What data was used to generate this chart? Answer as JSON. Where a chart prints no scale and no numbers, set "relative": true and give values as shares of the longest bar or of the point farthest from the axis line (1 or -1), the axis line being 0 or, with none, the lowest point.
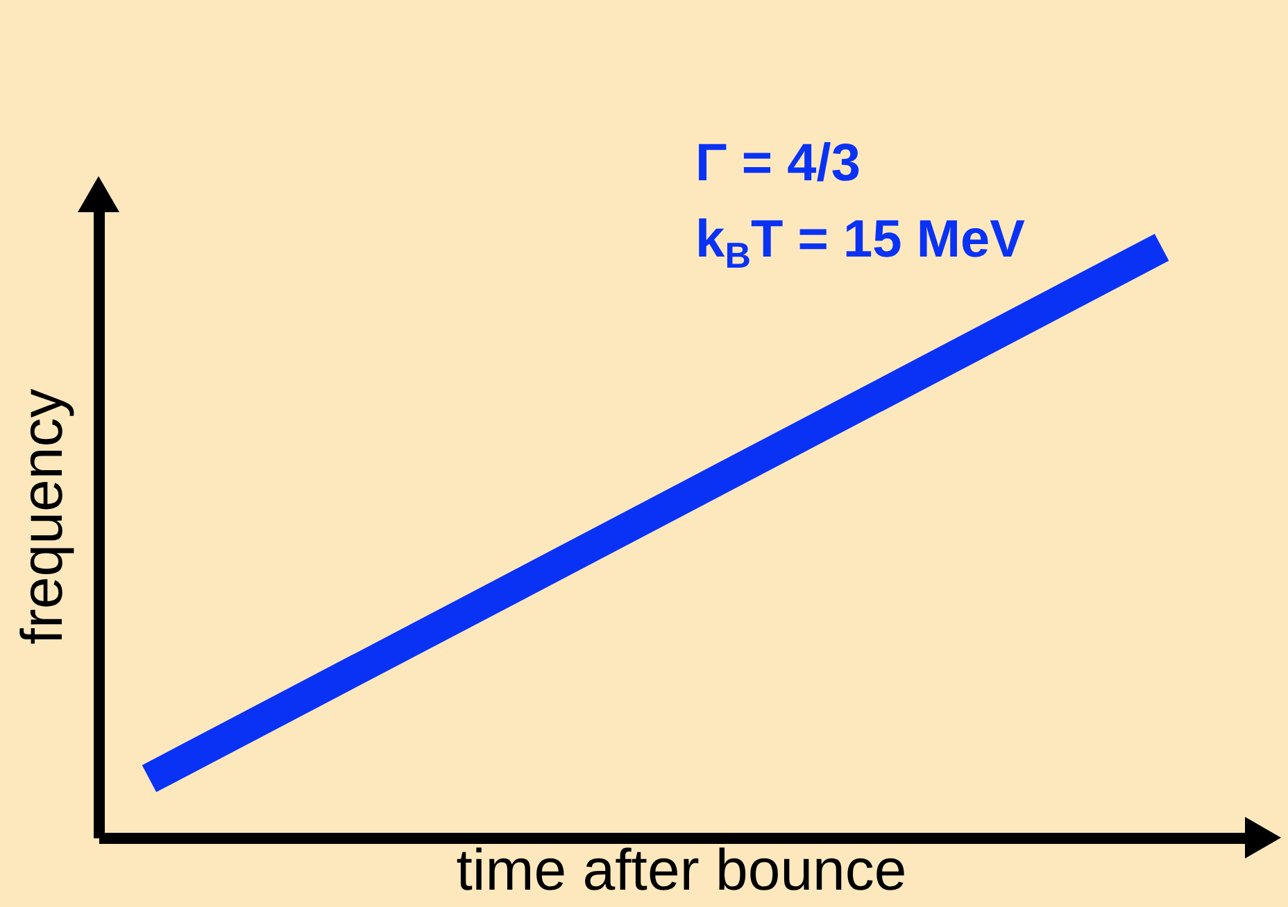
{
  "chart_data": {
    "type": "line",
    "relative": true,
    "xlabel": "time after bounce",
    "ylabel": "frequency",
    "categories": [
      null,
      null
    ],
    "series": [
      {
        "color": "#0a32f5",
        "values": [
          0.1,
          1
        ]
      }
    ],
    "annotations": [
      "Γ = 4/3",
      "k$_{B}$T = 15 MeV"
    ],
    "tick_labels": false,
    "grid": false,
    "legend": false,
    "marker": "none",
    "line_style": "solid"
  }
}
